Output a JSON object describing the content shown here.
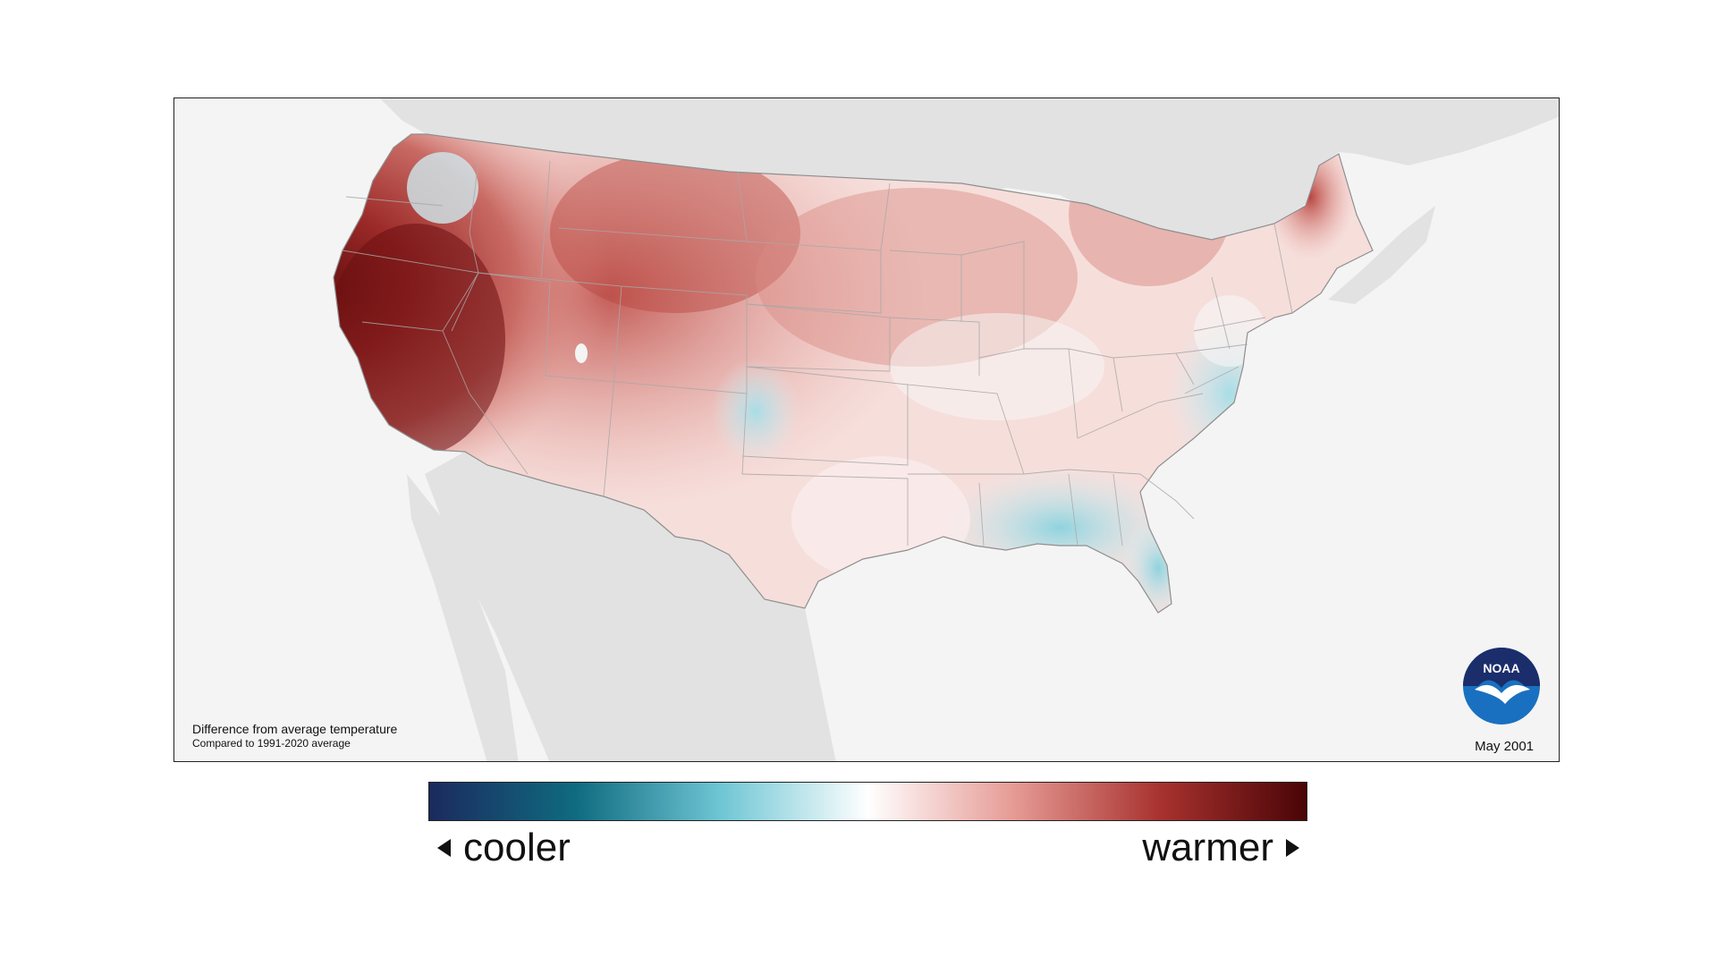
{
  "map": {
    "caption_title": "Difference from average temperature",
    "caption_subtitle": "Compared to 1991-2020 average",
    "date": "May 2001",
    "logo_text": "NOAA"
  },
  "legend": {
    "cooler_label": "cooler",
    "warmer_label": "warmer",
    "colors": [
      "#1b2a5e",
      "#0f6b80",
      "#6fc6d4",
      "#ffffff",
      "#e69a94",
      "#a8322f",
      "#4a0406"
    ]
  },
  "colors": {
    "land_background": "#f4f4f4",
    "neighbor_land": "#e2e2e2",
    "state_border": "#9a9a9a"
  }
}
